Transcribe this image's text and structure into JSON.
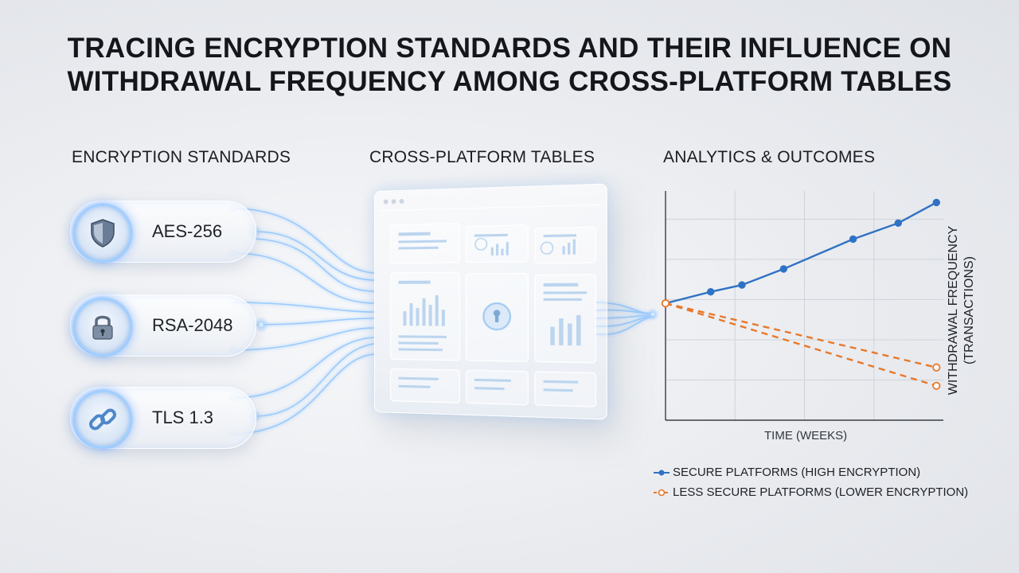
{
  "title": {
    "line1": "TRACING ENCRYPTION STANDARDS AND THEIR INFLUENCE ON",
    "line2": "WITHDRAWAL FREQUENCY AMONG CROSS-PLATFORM TABLES"
  },
  "columns": {
    "encryption": "ENCRYPTION STANDARDS",
    "tables": "CROSS-PLATFORM TABLES",
    "analytics": "ANALYTICS & OUTCOMES"
  },
  "standards": [
    {
      "label": "AES-256",
      "icon": "shield-icon"
    },
    {
      "label": "RSA-2048",
      "icon": "lock-icon"
    },
    {
      "label": "TLS 1.3",
      "icon": "chain-link-icon"
    }
  ],
  "colors": {
    "accent_glow": "#6fb1ff",
    "secure": "#2f72c4",
    "less_secure": "#e8782b"
  },
  "chart_data": {
    "type": "line",
    "xlabel": "TIME (WEEKS)",
    "ylabel": "WITHDRAWAL FREQUENCY (TRANSACTIONS)",
    "xlim": [
      0,
      8
    ],
    "ylim": [
      0,
      10
    ],
    "grid": true,
    "legend_position": "bottom",
    "series": [
      {
        "name": "SECURE PLATFORMS (HIGH ENCRYPTION)",
        "style": "solid",
        "marker": "filled-circle",
        "x": [
          0,
          1.3,
          2.2,
          3.4,
          5.4,
          6.7,
          7.8
        ],
        "y": [
          5.1,
          5.6,
          5.9,
          6.6,
          7.9,
          8.6,
          9.5
        ]
      },
      {
        "name": "LESS SECURE PLATFORMS (LOWER ENCRYPTION)",
        "style": "dashed",
        "marker": "open-circle",
        "x": [
          0,
          7.8
        ],
        "y": [
          5.1,
          2.3
        ]
      },
      {
        "name": "",
        "style": "dashed",
        "marker": "open-circle",
        "x": [
          0,
          7.8
        ],
        "y": [
          5.1,
          1.5
        ]
      }
    ]
  }
}
